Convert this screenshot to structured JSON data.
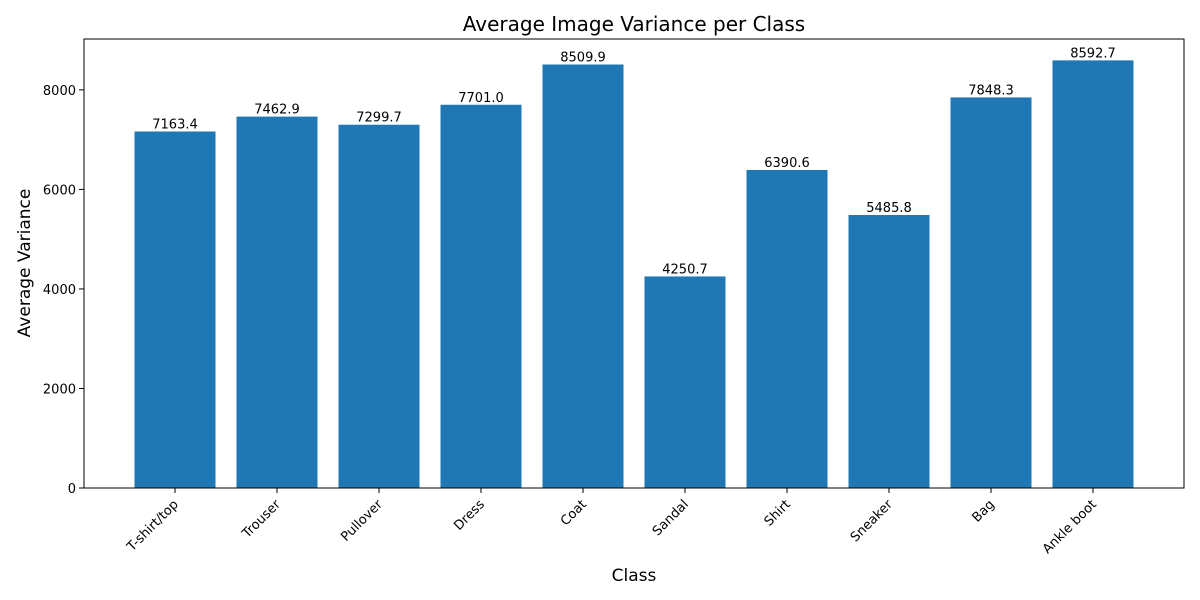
{
  "chart_data": {
    "type": "bar",
    "title": "Average Image Variance per Class",
    "xlabel": "Class",
    "ylabel": "Average Variance",
    "categories": [
      "T-shirt/top",
      "Trouser",
      "Pullover",
      "Dress",
      "Coat",
      "Sandal",
      "Shirt",
      "Sneaker",
      "Bag",
      "Ankle boot"
    ],
    "values": [
      7163.4,
      7462.9,
      7299.7,
      7701.0,
      8509.9,
      4250.7,
      6390.6,
      5485.8,
      7848.3,
      8592.7
    ],
    "data_labels": [
      "7163.4",
      "7462.9",
      "7299.7",
      "7701.0",
      "8509.9",
      "4250.7",
      "6390.6",
      "5485.8",
      "7848.3",
      "8592.7"
    ],
    "yticks": [
      0,
      2000,
      4000,
      6000,
      8000
    ],
    "ylim": [
      0,
      9022.3
    ],
    "grid": false,
    "bar_color": "#1f77b4"
  }
}
